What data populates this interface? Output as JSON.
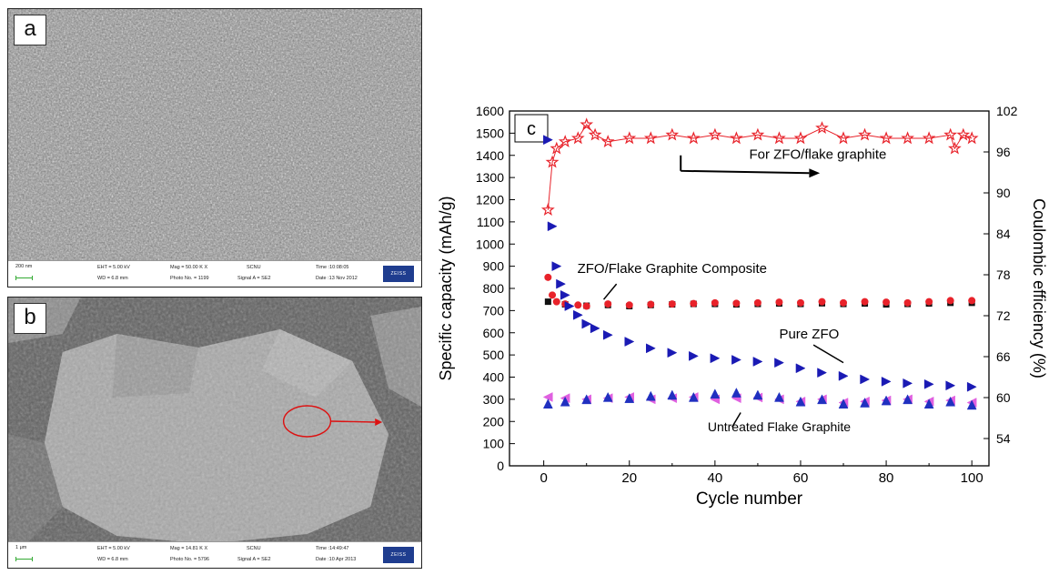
{
  "panels": {
    "a": {
      "letter": "a",
      "info": {
        "scale": "200 nm",
        "eht": "EHT = 5.00 kV",
        "wd": "WD = 6.8 mm",
        "mag": "Mag = 50.00 K X",
        "photo": "Photo No. = 1199",
        "operator": "SCNU",
        "signal": "Signal A = SE2",
        "time": "Time :10:08:05",
        "date": "Date :13 Nov 2012",
        "logo": "ZEISS"
      }
    },
    "b": {
      "letter": "b",
      "info": {
        "scale": "1 μm",
        "eht": "EHT = 5.00 kV",
        "wd": "WD = 6.8 mm",
        "mag": "Mag = 14.81 K X",
        "photo": "Photo No. = 5796",
        "operator": "SCNU",
        "signal": "Signal A = SE2",
        "time": "Time :14:49:47",
        "date": "Date :10 Apr 2013",
        "logo": "ZEISS"
      }
    }
  },
  "chart_data": {
    "type": "scatter",
    "panel_label": "c",
    "title": "",
    "xlabel": "Cycle number",
    "ylabel": "Specific capacity (mAh/g)",
    "y2label": "Coulombic efficiency (%)",
    "xlim": [
      -8,
      104
    ],
    "ylim": [
      0,
      1600
    ],
    "y2lim": [
      50,
      102
    ],
    "xticks": [
      0,
      20,
      40,
      60,
      80,
      100
    ],
    "yticks": [
      0,
      100,
      200,
      300,
      400,
      500,
      600,
      700,
      800,
      900,
      1000,
      1100,
      1200,
      1300,
      1400,
      1500,
      1600
    ],
    "y2ticks": [
      54,
      60,
      66,
      72,
      78,
      84,
      90,
      96,
      102
    ],
    "grid": false,
    "series": [
      {
        "name": "For ZFO/flake graphite",
        "axis": "right",
        "color": "#e8222a",
        "marker": "star",
        "x": [
          1,
          2,
          3,
          5,
          8,
          10,
          12,
          15,
          20,
          25,
          30,
          35,
          40,
          45,
          50,
          55,
          60,
          65,
          70,
          75,
          80,
          85,
          90,
          95,
          96,
          98,
          100
        ],
        "values": [
          87.5,
          94.5,
          96.5,
          97.5,
          98,
          100,
          98.5,
          97.5,
          98,
          98,
          98.5,
          98,
          98.5,
          98,
          98.5,
          98,
          98,
          99.5,
          98,
          98.5,
          98,
          98,
          98,
          98.5,
          96.5,
          98.5,
          98
        ]
      },
      {
        "name": "ZFO/Flake Graphite Composite",
        "axis": "left",
        "color": "#e8222a",
        "marker": "circle",
        "x": [
          1,
          2,
          3,
          5,
          8,
          10,
          15,
          20,
          25,
          30,
          35,
          40,
          45,
          50,
          55,
          60,
          65,
          70,
          75,
          80,
          85,
          90,
          95,
          100
        ],
        "values": [
          850,
          770,
          740,
          730,
          725,
          720,
          730,
          725,
          728,
          730,
          732,
          735,
          733,
          735,
          738,
          735,
          740,
          735,
          740,
          738,
          735,
          740,
          745,
          745
        ]
      },
      {
        "name": "Pure ZFO",
        "axis": "left",
        "color": "#1a1ab4",
        "marker": "triangle-right",
        "x": [
          1,
          2,
          3,
          4,
          5,
          6,
          8,
          10,
          12,
          15,
          20,
          25,
          30,
          35,
          40,
          45,
          50,
          55,
          60,
          65,
          70,
          75,
          80,
          85,
          90,
          95,
          100
        ],
        "values": [
          1470,
          1080,
          900,
          820,
          770,
          720,
          680,
          640,
          620,
          590,
          560,
          530,
          510,
          495,
          485,
          478,
          470,
          465,
          440,
          420,
          405,
          390,
          380,
          372,
          368,
          362,
          356
        ]
      },
      {
        "name": "Untreated Flake Graphite",
        "axis": "left",
        "color": "#e060e0",
        "marker": "triangle-left",
        "x": [
          1,
          5,
          10,
          15,
          20,
          25,
          30,
          35,
          40,
          45,
          50,
          55,
          60,
          65,
          70,
          75,
          80,
          85,
          90,
          95,
          100
        ],
        "values": [
          310,
          305,
          300,
          305,
          310,
          300,
          305,
          310,
          300,
          305,
          308,
          300,
          290,
          300,
          285,
          290,
          295,
          300,
          290,
          295,
          285
        ]
      },
      {
        "name": "Untreated Flake Graphite (blue)",
        "axis": "left",
        "color": "#2030c0",
        "marker": "triangle-up",
        "x": [
          1,
          5,
          10,
          15,
          20,
          25,
          30,
          35,
          40,
          45,
          50,
          55,
          60,
          65,
          70,
          75,
          80,
          85,
          90,
          95,
          100
        ],
        "values": [
          280,
          290,
          300,
          310,
          305,
          315,
          320,
          310,
          325,
          330,
          320,
          310,
          290,
          300,
          280,
          285,
          295,
          300,
          280,
          290,
          275
        ]
      },
      {
        "name": "Black composite",
        "axis": "left",
        "color": "#111111",
        "marker": "square",
        "x": [
          1,
          5,
          10,
          15,
          20,
          25,
          30,
          35,
          40,
          45,
          50,
          55,
          60,
          65,
          70,
          75,
          80,
          85,
          90,
          95,
          100
        ],
        "values": [
          740,
          728,
          722,
          725,
          720,
          725,
          728,
          730,
          730,
          728,
          730,
          732,
          730,
          733,
          730,
          732,
          728,
          730,
          732,
          735,
          735
        ]
      }
    ],
    "annotations": [
      {
        "text": "For ZFO/flake graphite",
        "x": 48,
        "y": 1385
      },
      {
        "text": "ZFO/Flake Graphite Composite",
        "x": 30,
        "y": 870
      },
      {
        "text": "Pure ZFO",
        "x": 62,
        "y": 575
      },
      {
        "text": "Untreated Flake Graphite",
        "x": 55,
        "y": 155
      }
    ]
  }
}
